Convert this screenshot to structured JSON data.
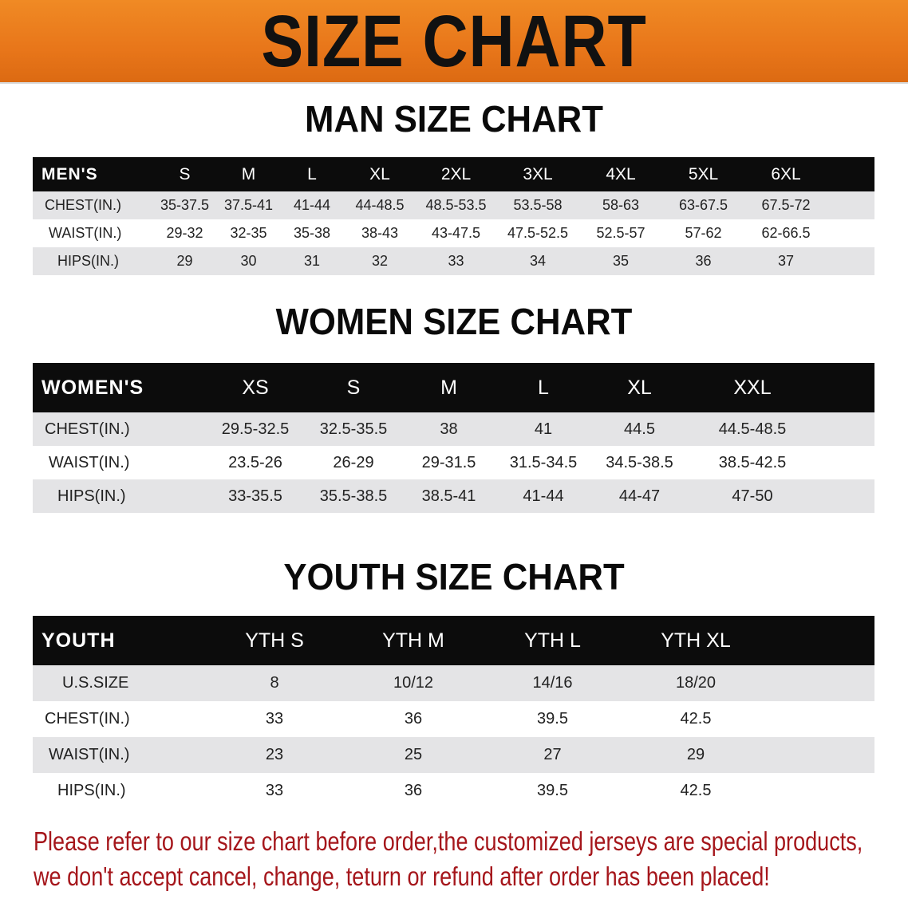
{
  "banner": {
    "title": "SIZE CHART",
    "color": "#e8761a"
  },
  "men": {
    "title": "MAN SIZE CHART",
    "header": [
      "MEN'S",
      "S",
      "M",
      "L",
      "XL",
      "2XL",
      "3XL",
      "4XL",
      "5XL",
      "6XL"
    ],
    "rows": [
      [
        "CHEST(IN.)",
        "35-37.5",
        "37.5-41",
        "41-44",
        "44-48.5",
        "48.5-53.5",
        "53.5-58",
        "58-63",
        "63-67.5",
        "67.5-72"
      ],
      [
        "WAIST(IN.)",
        "29-32",
        "32-35",
        "35-38",
        "38-43",
        "43-47.5",
        "47.5-52.5",
        "52.5-57",
        "57-62",
        "62-66.5"
      ],
      [
        "HIPS(IN.)",
        "29",
        "30",
        "31",
        "32",
        "33",
        "34",
        "35",
        "36",
        "37"
      ]
    ]
  },
  "women": {
    "title": "WOMEN SIZE CHART",
    "header": [
      "WOMEN'S",
      "XS",
      "S",
      "M",
      "L",
      "XL",
      "XXL"
    ],
    "rows": [
      [
        "CHEST(IN.)",
        "29.5-32.5",
        "32.5-35.5",
        "38",
        "41",
        "44.5",
        "44.5-48.5"
      ],
      [
        "WAIST(IN.)",
        "23.5-26",
        "26-29",
        "29-31.5",
        "31.5-34.5",
        "34.5-38.5",
        "38.5-42.5"
      ],
      [
        "HIPS(IN.)",
        "33-35.5",
        "35.5-38.5",
        "38.5-41",
        "41-44",
        "44-47",
        "47-50"
      ]
    ]
  },
  "youth": {
    "title": "YOUTH SIZE CHART",
    "header": [
      "YOUTH",
      "YTH S",
      "YTH M",
      "YTH L",
      "YTH XL"
    ],
    "rows": [
      [
        "U.S.SIZE",
        "8",
        "10/12",
        "14/16",
        "18/20"
      ],
      [
        "CHEST(IN.)",
        "33",
        "36",
        "39.5",
        "42.5"
      ],
      [
        "WAIST(IN.)",
        "23",
        "25",
        "27",
        "29"
      ],
      [
        "HIPS(IN.)",
        "33",
        "36",
        "39.5",
        "42.5"
      ]
    ]
  },
  "note": {
    "line1": "Please refer to our size chart before order,the customized jerseys are special products,",
    "line2": "we don't accept cancel, change, teturn or refund after order has been placed!",
    "color": "#a5161b"
  }
}
